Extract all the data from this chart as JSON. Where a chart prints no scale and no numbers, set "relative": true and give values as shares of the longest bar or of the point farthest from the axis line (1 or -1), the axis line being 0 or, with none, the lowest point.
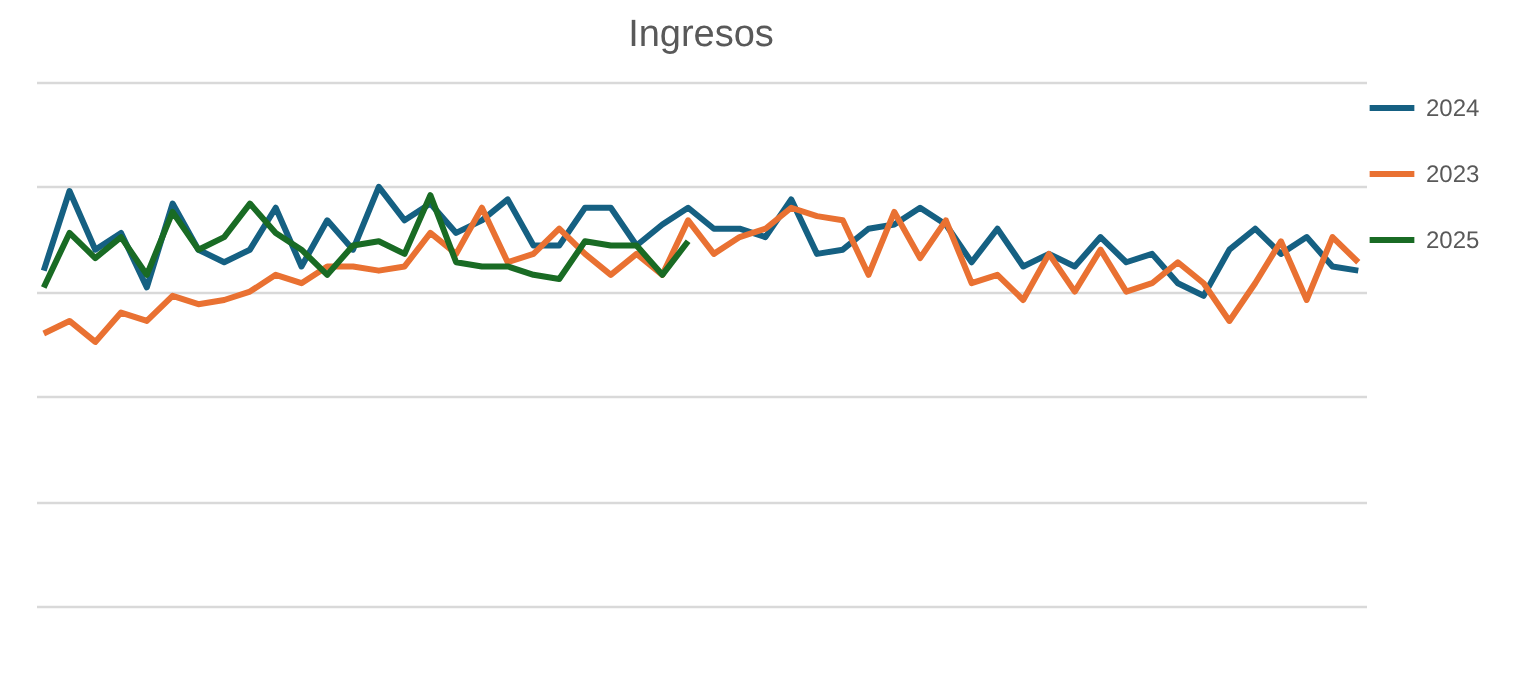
{
  "chart_data": {
    "type": "line",
    "title": "Ingresos",
    "relative": true,
    "grid": "y",
    "legend": "right",
    "tick_labels": false,
    "line_style": "solid",
    "categories": [
      null,
      null,
      null,
      null,
      null,
      null,
      null,
      null,
      null,
      null,
      null,
      null,
      null,
      null,
      null,
      null,
      null,
      null,
      null,
      null,
      null,
      null,
      null,
      null,
      null,
      null,
      null,
      null,
      null,
      null,
      null,
      null,
      null,
      null,
      null,
      null,
      null,
      null,
      null,
      null,
      null,
      null,
      null,
      null,
      null,
      null,
      null,
      null,
      null,
      null,
      null,
      null
    ],
    "series": [
      {
        "name": "2024",
        "color": "#156082",
        "values": [
          0.8,
          0.99,
          0.85,
          0.89,
          0.76,
          0.96,
          0.85,
          0.82,
          0.85,
          0.95,
          0.81,
          0.92,
          0.85,
          1.0,
          0.92,
          0.96,
          0.89,
          0.92,
          0.97,
          0.86,
          0.86,
          0.95,
          0.95,
          0.86,
          0.91,
          0.95,
          0.9,
          0.9,
          0.88,
          0.97,
          0.84,
          0.85,
          0.9,
          0.91,
          0.95,
          0.91,
          0.82,
          0.9,
          0.81,
          0.84,
          0.81,
          0.88,
          0.82,
          0.84,
          0.77,
          0.74,
          0.85,
          0.9,
          0.84,
          0.88,
          0.81,
          0.8
        ]
      },
      {
        "name": "2023",
        "color": "#e97132",
        "values": [
          0.65,
          0.68,
          0.63,
          0.7,
          0.68,
          0.74,
          0.72,
          0.73,
          0.75,
          0.79,
          0.77,
          0.81,
          0.81,
          0.8,
          0.81,
          0.89,
          0.84,
          0.95,
          0.82,
          0.84,
          0.9,
          0.84,
          0.79,
          0.84,
          0.79,
          0.92,
          0.84,
          0.88,
          0.9,
          0.95,
          0.93,
          0.92,
          0.79,
          0.94,
          0.83,
          0.92,
          0.77,
          0.79,
          0.73,
          0.84,
          0.75,
          0.85,
          0.75,
          0.77,
          0.82,
          0.77,
          0.68,
          0.77,
          0.87,
          0.73,
          0.88,
          0.82
        ]
      },
      {
        "name": "2025",
        "color": "#196b24",
        "values": [
          0.76,
          0.89,
          0.83,
          0.88,
          0.79,
          0.94,
          0.85,
          0.88,
          0.96,
          0.89,
          0.85,
          0.79,
          0.86,
          0.87,
          0.84,
          0.98,
          0.82,
          0.81,
          0.81,
          0.79,
          0.78,
          0.87,
          0.86,
          0.86,
          0.79,
          0.87,
          null,
          null,
          null,
          null,
          null,
          null,
          null,
          null,
          null,
          null,
          null,
          null,
          null,
          null,
          null,
          null,
          null,
          null,
          null,
          null,
          null,
          null,
          null,
          null,
          null,
          null
        ]
      }
    ]
  }
}
